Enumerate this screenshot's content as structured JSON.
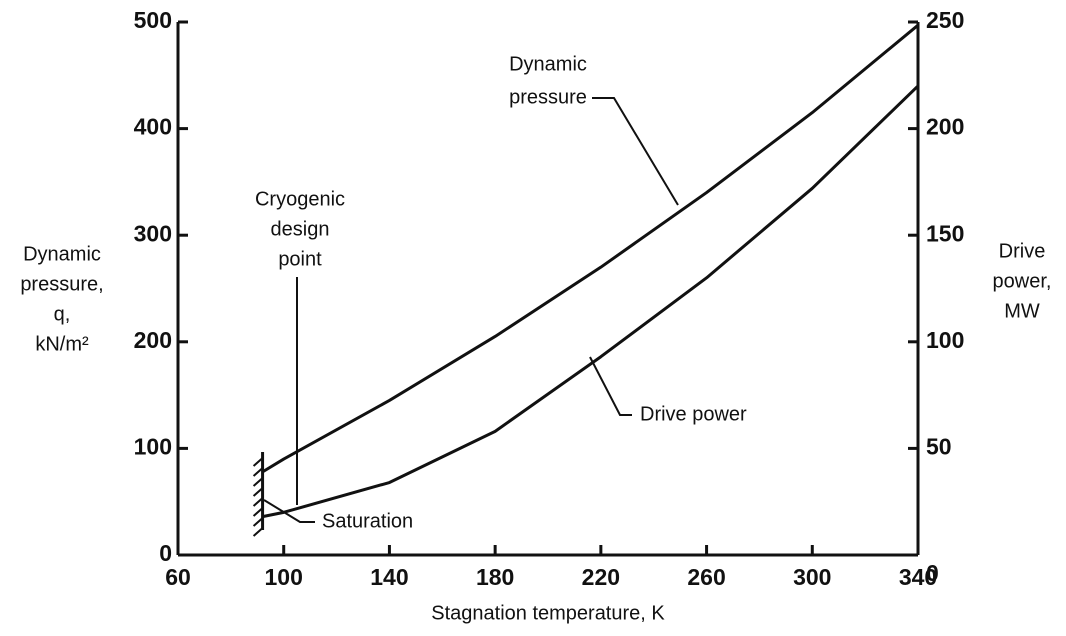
{
  "chart_data": {
    "type": "line",
    "xlabel": "Stagnation temperature, K",
    "ylabel": [
      "Dynamic",
      "pressure,",
      "q,",
      "kN/m²"
    ],
    "y2label": [
      "Drive",
      "power,",
      "MW"
    ],
    "x": [
      92,
      100,
      140,
      180,
      220,
      260,
      300,
      340
    ],
    "series": [
      {
        "name": [
          "Dynamic",
          "pressure"
        ],
        "color": "#111111",
        "values": [
          78,
          90,
          145,
          205,
          270,
          340,
          415,
          497
        ]
      },
      {
        "name": [
          "Drive power"
        ],
        "color": "#111111",
        "axis": "y2",
        "values": [
          18,
          20,
          34,
          58,
          93,
          130,
          172,
          220
        ]
      }
    ],
    "annotations": [
      [
        "Cryogenic",
        "design",
        "point"
      ],
      [
        "Saturation"
      ]
    ],
    "xlim": [
      60,
      340
    ],
    "xticks": [
      60,
      100,
      140,
      180,
      220,
      260,
      300,
      340
    ],
    "ylim": [
      0,
      500
    ],
    "yticks": [
      0,
      100,
      200,
      300,
      400,
      500
    ],
    "y2lim": [
      0,
      250
    ],
    "y2ticks": [
      0,
      50,
      100,
      150,
      200,
      250
    ],
    "grid": false
  }
}
